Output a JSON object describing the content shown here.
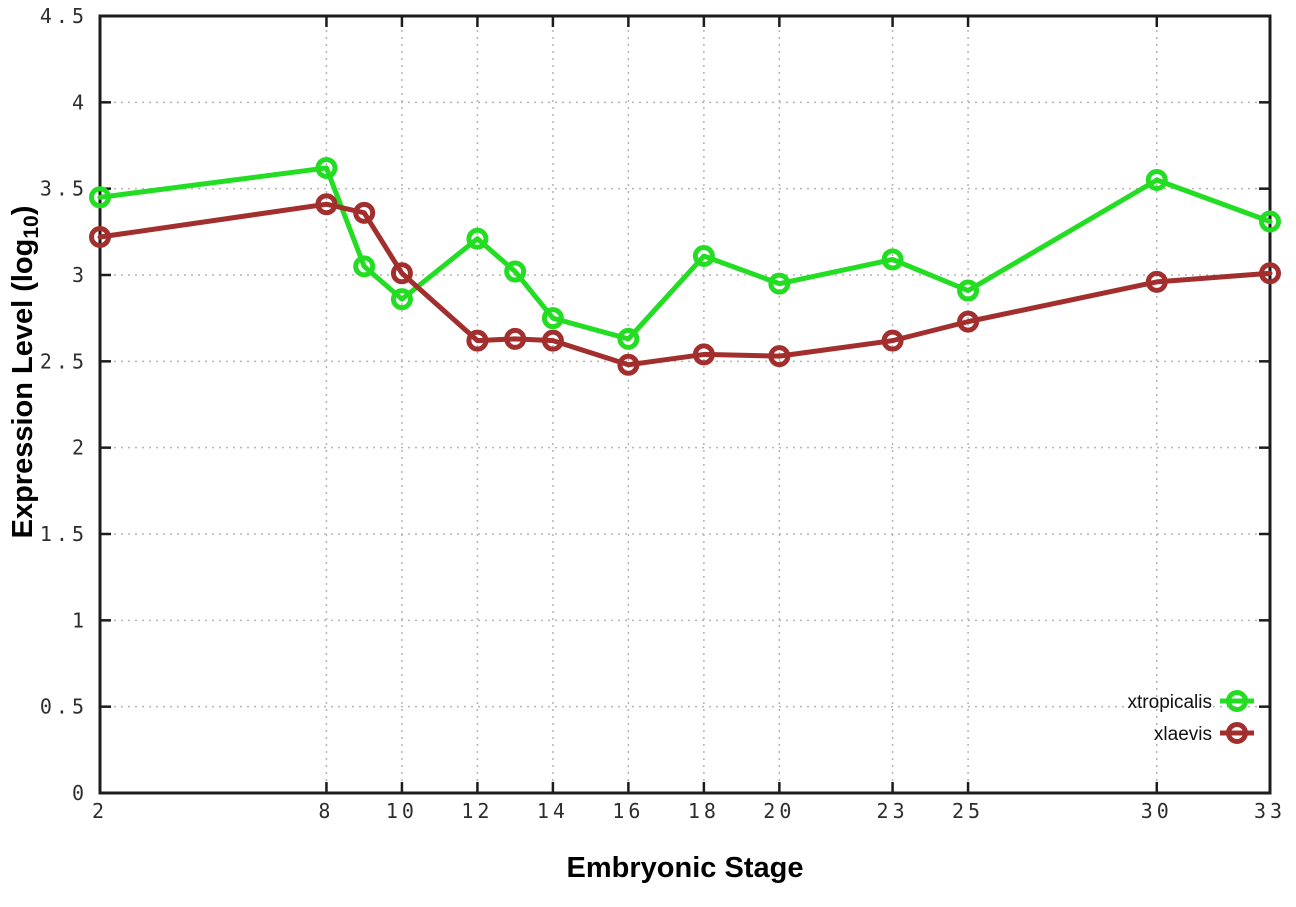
{
  "chart_data": {
    "type": "line",
    "title": "",
    "xlabel": "Embryonic Stage",
    "ylabel": "Expression Level (log10)",
    "ylabel_parts": {
      "main": "Expression Level (log",
      "sub": "10",
      "close": ")"
    },
    "xlim": [
      2,
      33
    ],
    "ylim": [
      0,
      4.5
    ],
    "grid": true,
    "legend_position": "inside-bottom-right",
    "x": [
      2,
      8,
      9,
      10,
      12,
      13,
      14,
      16,
      18,
      20,
      23,
      25,
      30,
      33
    ],
    "x_ticks": [
      2,
      8,
      10,
      12,
      14,
      16,
      18,
      20,
      23,
      25,
      30,
      33
    ],
    "x_tick_labels": [
      "2",
      "8",
      "10",
      "12",
      "14",
      "16",
      "18",
      "20",
      "23",
      "25",
      "30",
      "33"
    ],
    "y_ticks": [
      0,
      0.5,
      1,
      1.5,
      2,
      2.5,
      3,
      3.5,
      4,
      4.5
    ],
    "y_tick_labels": [
      "0",
      "0.5",
      "1",
      "1.5",
      "2",
      "2.5",
      "3",
      "3.5",
      "4",
      "4.5"
    ],
    "series": [
      {
        "name": "xtropicalis",
        "color": "#23dd23",
        "marker": "open-circle",
        "values": [
          3.45,
          3.62,
          3.05,
          2.86,
          3.21,
          3.02,
          2.75,
          2.63,
          3.11,
          2.95,
          3.09,
          2.91,
          3.55,
          3.31
        ]
      },
      {
        "name": "xlaevis",
        "color": "#a32e2e",
        "marker": "open-circle",
        "values": [
          3.22,
          3.41,
          3.36,
          3.01,
          2.62,
          2.63,
          2.62,
          2.48,
          2.54,
          2.53,
          2.62,
          2.73,
          2.96,
          3.01
        ]
      }
    ],
    "colors": {
      "grid": "#b5b5b5",
      "border": "#1c1c1c",
      "background": "#ffffff"
    }
  }
}
